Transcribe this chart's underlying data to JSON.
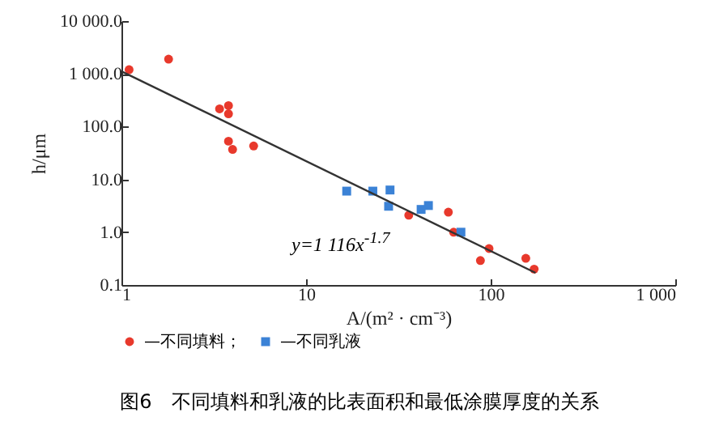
{
  "chart_data": {
    "type": "scatter",
    "xlabel": "A/(m² · cm⁻³)",
    "ylabel": "h/μm",
    "log": "xy",
    "legend": "bottom",
    "xlim": [
      1,
      1000
    ],
    "xticks": [
      1,
      10,
      100,
      {
        "value": 1000,
        "label": "1 000"
      }
    ],
    "ylim": [
      0.1,
      10000
    ],
    "yticks": [
      0.1,
      {
        "value": 1,
        "label": "1.0"
      },
      {
        "value": 10,
        "label": "10.0"
      },
      {
        "value": 100,
        "label": "100.0"
      },
      {
        "value": 1000,
        "label": "1 000.0"
      },
      {
        "value": 10000,
        "label": "10 000.0"
      }
    ],
    "series": [
      {
        "name": "—不同填料；",
        "color": "#e8392c",
        "marker": "circle",
        "x": [
          1.1,
          1.8,
          3.4,
          3.8,
          3.8,
          3.8,
          4.0,
          5.2,
          22,
          36,
          40,
          59,
          63,
          98,
          88,
          155,
          172
        ],
        "values": [
          1200,
          1900,
          217,
          250,
          175,
          53,
          37,
          43,
          null,
          2.1,
          null,
          2.4,
          1.0,
          0.49,
          0.29,
          0.32,
          0.2
        ]
      },
      {
        "name": "—不同乳液",
        "color": "#3b82d6",
        "marker": "square",
        "x": [
          16.6,
          23,
          28.5,
          28,
          42,
          44,
          46,
          42,
          69
        ],
        "values": [
          6,
          6,
          6.3,
          3.1,
          null,
          null,
          3.2,
          2.7,
          1.0
        ]
      },
      {
        "type": "line",
        "color": "#333333",
        "marker": "none",
        "x": [
          1,
          175
        ],
        "values": [
          1116,
          0.17
        ]
      }
    ],
    "annotations": [
      "y=1 116x$^{-1.7}$",
      "图6　不同填料和乳液的比表面积和最低涂膜厚度的关系"
    ]
  }
}
